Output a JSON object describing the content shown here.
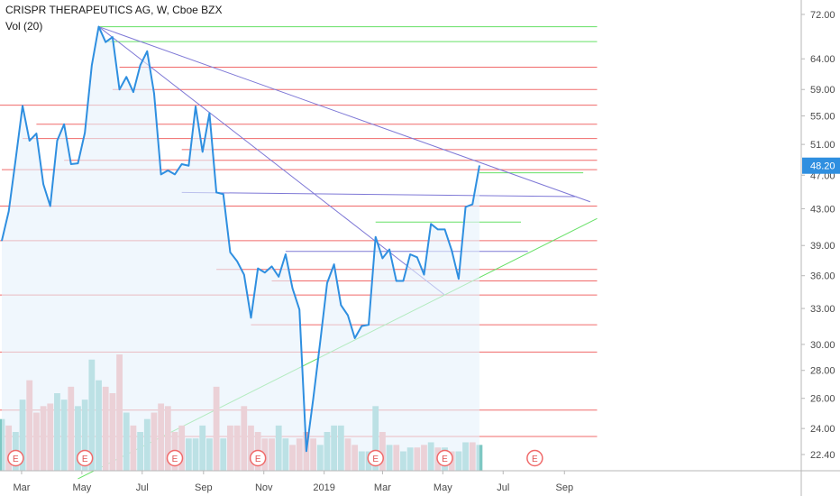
{
  "chart_data": {
    "type": "line",
    "title": "CRISPR THERAPEUTICS AG, W, Cboe BZX",
    "indicator": "Vol (20)",
    "last_price": "48.20",
    "y_scale": "log",
    "y_ticks": [
      "72.00",
      "64.00",
      "59.00",
      "55.00",
      "51.00",
      "47.00",
      "43.00",
      "39.00",
      "36.00",
      "33.00",
      "30.00",
      "28.00",
      "26.00",
      "24.00",
      "22.40"
    ],
    "x_ticks": [
      "Mar",
      "May",
      "Jul",
      "Sep",
      "Nov",
      "2019",
      "Mar",
      "May",
      "Jul",
      "Sep"
    ],
    "earnings_marker_label": "E",
    "colors": {
      "price_line": "#2f8fe0",
      "area_fill": "#e6f1fb",
      "support_resistance": "#f06a6a",
      "trend_down": "#7e78d6",
      "trend_up": "#66e066",
      "volume_up": "#7ec8c3",
      "volume_down": "#f2a1a1",
      "last_price_badge": "#2f8fe0"
    },
    "series": [
      {
        "values": [
          {
            "x": "2018-02-09",
            "y": 39.5
          },
          {
            "x": "2018-02-16",
            "y": 42.7
          },
          {
            "x": "2018-02-23",
            "y": 49.0
          },
          {
            "x": "2018-03-02",
            "y": 56.5
          },
          {
            "x": "2018-03-09",
            "y": 51.5
          },
          {
            "x": "2018-03-16",
            "y": 52.5
          },
          {
            "x": "2018-03-23",
            "y": 45.9
          },
          {
            "x": "2018-03-30",
            "y": 43.3
          },
          {
            "x": "2018-04-06",
            "y": 51.5
          },
          {
            "x": "2018-04-13",
            "y": 53.8
          },
          {
            "x": "2018-04-20",
            "y": 48.4
          },
          {
            "x": "2018-04-27",
            "y": 48.5
          },
          {
            "x": "2018-05-04",
            "y": 52.6
          },
          {
            "x": "2018-05-11",
            "y": 62.9
          },
          {
            "x": "2018-05-18",
            "y": 69.7
          },
          {
            "x": "2018-05-25",
            "y": 66.9
          },
          {
            "x": "2018-06-01",
            "y": 67.8
          },
          {
            "x": "2018-06-08",
            "y": 59.0
          },
          {
            "x": "2018-06-15",
            "y": 61.0
          },
          {
            "x": "2018-06-22",
            "y": 58.6
          },
          {
            "x": "2018-06-29",
            "y": 62.9
          },
          {
            "x": "2018-07-06",
            "y": 65.3
          },
          {
            "x": "2018-07-13",
            "y": 58.4
          },
          {
            "x": "2018-07-20",
            "y": 47.1
          },
          {
            "x": "2018-07-27",
            "y": 47.6
          },
          {
            "x": "2018-08-03",
            "y": 47.1
          },
          {
            "x": "2018-08-10",
            "y": 48.4
          },
          {
            "x": "2018-08-17",
            "y": 48.2
          },
          {
            "x": "2018-08-24",
            "y": 56.4
          },
          {
            "x": "2018-08-31",
            "y": 50.0
          },
          {
            "x": "2018-09-07",
            "y": 55.4
          },
          {
            "x": "2018-09-14",
            "y": 44.9
          },
          {
            "x": "2018-09-21",
            "y": 44.7
          },
          {
            "x": "2018-09-28",
            "y": 38.3
          },
          {
            "x": "2018-10-05",
            "y": 37.4
          },
          {
            "x": "2018-10-12",
            "y": 36.1
          },
          {
            "x": "2018-10-19",
            "y": 32.2
          },
          {
            "x": "2018-10-26",
            "y": 36.7
          },
          {
            "x": "2018-11-02",
            "y": 36.3
          },
          {
            "x": "2018-11-09",
            "y": 36.9
          },
          {
            "x": "2018-11-16",
            "y": 35.9
          },
          {
            "x": "2018-11-23",
            "y": 38.1
          },
          {
            "x": "2018-11-30",
            "y": 34.8
          },
          {
            "x": "2018-12-07",
            "y": 32.9
          },
          {
            "x": "2018-12-14",
            "y": 22.6
          },
          {
            "x": "2018-12-21",
            "y": 26.0
          },
          {
            "x": "2018-12-28",
            "y": 30.2
          },
          {
            "x": "2019-01-04",
            "y": 35.3
          },
          {
            "x": "2019-01-11",
            "y": 37.1
          },
          {
            "x": "2019-01-18",
            "y": 33.3
          },
          {
            "x": "2019-01-25",
            "y": 32.4
          },
          {
            "x": "2019-02-01",
            "y": 30.5
          },
          {
            "x": "2019-02-08",
            "y": 31.5
          },
          {
            "x": "2019-02-15",
            "y": 31.6
          },
          {
            "x": "2019-02-22",
            "y": 39.9
          },
          {
            "x": "2019-03-01",
            "y": 37.7
          },
          {
            "x": "2019-03-08",
            "y": 38.6
          },
          {
            "x": "2019-03-15",
            "y": 35.5
          },
          {
            "x": "2019-03-22",
            "y": 35.5
          },
          {
            "x": "2019-03-29",
            "y": 38.1
          },
          {
            "x": "2019-04-05",
            "y": 37.8
          },
          {
            "x": "2019-04-12",
            "y": 36.1
          },
          {
            "x": "2019-04-19",
            "y": 41.3
          },
          {
            "x": "2019-04-26",
            "y": 40.7
          },
          {
            "x": "2019-05-03",
            "y": 40.7
          },
          {
            "x": "2019-05-10",
            "y": 38.5
          },
          {
            "x": "2019-05-17",
            "y": 35.7
          },
          {
            "x": "2019-05-24",
            "y": 43.2
          },
          {
            "x": "2019-05-31",
            "y": 43.5
          },
          {
            "x": "2019-06-07",
            "y": 48.2
          }
        ]
      }
    ],
    "volume_bars": [
      {
        "x": "2018-02-09",
        "v": 4.0,
        "dir": "up"
      },
      {
        "x": "2018-02-16",
        "v": 3.5,
        "dir": "down"
      },
      {
        "x": "2018-02-23",
        "v": 3.0,
        "dir": "up"
      },
      {
        "x": "2018-03-02",
        "v": 5.5,
        "dir": "up"
      },
      {
        "x": "2018-03-09",
        "v": 7.0,
        "dir": "down"
      },
      {
        "x": "2018-03-16",
        "v": 4.5,
        "dir": "down"
      },
      {
        "x": "2018-03-23",
        "v": 5.0,
        "dir": "down"
      },
      {
        "x": "2018-03-30",
        "v": 5.2,
        "dir": "down"
      },
      {
        "x": "2018-04-06",
        "v": 6.0,
        "dir": "up"
      },
      {
        "x": "2018-04-13",
        "v": 5.5,
        "dir": "up"
      },
      {
        "x": "2018-04-20",
        "v": 6.5,
        "dir": "down"
      },
      {
        "x": "2018-04-27",
        "v": 5.0,
        "dir": "up"
      },
      {
        "x": "2018-05-04",
        "v": 5.5,
        "dir": "up"
      },
      {
        "x": "2018-05-11",
        "v": 8.6,
        "dir": "up"
      },
      {
        "x": "2018-05-18",
        "v": 7.0,
        "dir": "up"
      },
      {
        "x": "2018-05-25",
        "v": 6.5,
        "dir": "down"
      },
      {
        "x": "2018-06-01",
        "v": 6.0,
        "dir": "down"
      },
      {
        "x": "2018-06-08",
        "v": 9.0,
        "dir": "down"
      },
      {
        "x": "2018-06-15",
        "v": 4.5,
        "dir": "up"
      },
      {
        "x": "2018-06-22",
        "v": 3.5,
        "dir": "down"
      },
      {
        "x": "2018-06-29",
        "v": 3.0,
        "dir": "up"
      },
      {
        "x": "2018-07-06",
        "v": 4.0,
        "dir": "up"
      },
      {
        "x": "2018-07-13",
        "v": 4.5,
        "dir": "down"
      },
      {
        "x": "2018-07-20",
        "v": 5.2,
        "dir": "down"
      },
      {
        "x": "2018-07-27",
        "v": 5.0,
        "dir": "down"
      },
      {
        "x": "2018-08-03",
        "v": 3.0,
        "dir": "down"
      },
      {
        "x": "2018-08-10",
        "v": 3.5,
        "dir": "down"
      },
      {
        "x": "2018-08-17",
        "v": 2.5,
        "dir": "up"
      },
      {
        "x": "2018-08-24",
        "v": 2.5,
        "dir": "up"
      },
      {
        "x": "2018-08-31",
        "v": 3.5,
        "dir": "up"
      },
      {
        "x": "2018-09-07",
        "v": 2.5,
        "dir": "up"
      },
      {
        "x": "2018-09-14",
        "v": 6.5,
        "dir": "down"
      },
      {
        "x": "2018-09-21",
        "v": 2.5,
        "dir": "up"
      },
      {
        "x": "2018-09-28",
        "v": 3.5,
        "dir": "down"
      },
      {
        "x": "2018-10-05",
        "v": 3.5,
        "dir": "down"
      },
      {
        "x": "2018-10-12",
        "v": 5.0,
        "dir": "down"
      },
      {
        "x": "2018-10-19",
        "v": 3.5,
        "dir": "down"
      },
      {
        "x": "2018-10-26",
        "v": 3.0,
        "dir": "down"
      },
      {
        "x": "2018-11-02",
        "v": 2.5,
        "dir": "down"
      },
      {
        "x": "2018-11-09",
        "v": 2.5,
        "dir": "down"
      },
      {
        "x": "2018-11-16",
        "v": 3.5,
        "dir": "up"
      },
      {
        "x": "2018-11-23",
        "v": 2.5,
        "dir": "up"
      },
      {
        "x": "2018-11-30",
        "v": 2.0,
        "dir": "down"
      },
      {
        "x": "2018-12-07",
        "v": 2.5,
        "dir": "down"
      },
      {
        "x": "2018-12-14",
        "v": 3.0,
        "dir": "down"
      },
      {
        "x": "2018-12-21",
        "v": 2.5,
        "dir": "down"
      },
      {
        "x": "2018-12-28",
        "v": 2.0,
        "dir": "up"
      },
      {
        "x": "2019-01-04",
        "v": 3.0,
        "dir": "up"
      },
      {
        "x": "2019-01-11",
        "v": 3.5,
        "dir": "up"
      },
      {
        "x": "2019-01-18",
        "v": 3.5,
        "dir": "up"
      },
      {
        "x": "2019-01-25",
        "v": 2.5,
        "dir": "down"
      },
      {
        "x": "2019-02-01",
        "v": 2.0,
        "dir": "down"
      },
      {
        "x": "2019-02-08",
        "v": 1.5,
        "dir": "up"
      },
      {
        "x": "2019-02-15",
        "v": 1.5,
        "dir": "up"
      },
      {
        "x": "2019-02-22",
        "v": 5.0,
        "dir": "up"
      },
      {
        "x": "2019-03-01",
        "v": 3.0,
        "dir": "down"
      },
      {
        "x": "2019-03-08",
        "v": 2.0,
        "dir": "up"
      },
      {
        "x": "2019-03-15",
        "v": 2.0,
        "dir": "down"
      },
      {
        "x": "2019-03-22",
        "v": 1.5,
        "dir": "up"
      },
      {
        "x": "2019-03-29",
        "v": 1.8,
        "dir": "up"
      },
      {
        "x": "2019-04-05",
        "v": 1.8,
        "dir": "down"
      },
      {
        "x": "2019-04-12",
        "v": 2.0,
        "dir": "down"
      },
      {
        "x": "2019-04-19",
        "v": 2.2,
        "dir": "up"
      },
      {
        "x": "2019-04-26",
        "v": 1.8,
        "dir": "down"
      },
      {
        "x": "2019-05-03",
        "v": 1.8,
        "dir": "up"
      },
      {
        "x": "2019-05-10",
        "v": 1.5,
        "dir": "down"
      },
      {
        "x": "2019-05-17",
        "v": 1.5,
        "dir": "up"
      },
      {
        "x": "2019-05-24",
        "v": 2.2,
        "dir": "up"
      },
      {
        "x": "2019-05-31",
        "v": 2.2,
        "dir": "down"
      },
      {
        "x": "2019-06-07",
        "v": 2.0,
        "dir": "up"
      }
    ],
    "earnings_dates": [
      "2018-02-23",
      "2018-05-04",
      "2018-08-03",
      "2018-10-26",
      "2019-02-22",
      "2019-05-03",
      "2019-08-02"
    ],
    "horizontal_lines": [
      {
        "y": 69.7,
        "x1": "2018-05-18",
        "x2": "2019-10-04",
        "color": "trend_up"
      },
      {
        "y": 67.0,
        "x1": "2018-05-25",
        "x2": "2019-10-04",
        "color": "trend_up"
      },
      {
        "y": 62.6,
        "x1": "2018-06-08",
        "x2": "2019-10-04",
        "color": "support_resistance"
      },
      {
        "y": 59.0,
        "x1": "2018-06-01",
        "x2": "2019-10-04",
        "color": "support_resistance"
      },
      {
        "y": 56.6,
        "x1": "2018-02-02",
        "x2": "2019-10-04",
        "color": "support_resistance"
      },
      {
        "y": 53.8,
        "x1": "2018-03-16",
        "x2": "2019-10-04",
        "color": "support_resistance"
      },
      {
        "y": 51.8,
        "x1": "2018-03-02",
        "x2": "2019-10-04",
        "color": "support_resistance"
      },
      {
        "y": 50.3,
        "x1": "2018-08-10",
        "x2": "2019-10-04",
        "color": "support_resistance"
      },
      {
        "y": 48.9,
        "x1": "2018-04-13",
        "x2": "2019-10-04",
        "color": "support_resistance"
      },
      {
        "y": 47.7,
        "x1": "2018-02-09",
        "x2": "2019-10-04",
        "color": "support_resistance"
      },
      {
        "y": 47.3,
        "x1": "2019-06-07",
        "x2": "2019-09-20",
        "color": "trend_up"
      },
      {
        "y": 43.3,
        "x1": "2018-02-02",
        "x2": "2019-10-04",
        "color": "support_resistance"
      },
      {
        "y": 41.5,
        "x1": "2019-02-22",
        "x2": "2019-07-19",
        "color": "trend_up"
      },
      {
        "y": 39.5,
        "x1": "2018-02-02",
        "x2": "2019-10-04",
        "color": "support_resistance"
      },
      {
        "y": 38.4,
        "x1": "2018-11-23",
        "x2": "2019-07-26",
        "color": "trend_down"
      },
      {
        "y": 36.6,
        "x1": "2018-09-14",
        "x2": "2019-10-04",
        "color": "support_resistance"
      },
      {
        "y": 35.5,
        "x1": "2018-11-09",
        "x2": "2019-10-04",
        "color": "support_resistance"
      },
      {
        "y": 34.2,
        "x1": "2018-02-02",
        "x2": "2019-10-04",
        "color": "support_resistance"
      },
      {
        "y": 31.6,
        "x1": "2018-10-19",
        "x2": "2019-10-04",
        "color": "support_resistance"
      },
      {
        "y": 29.4,
        "x1": "2018-02-02",
        "x2": "2019-10-04",
        "color": "support_resistance"
      },
      {
        "y": 25.2,
        "x1": "2018-02-02",
        "x2": "2019-10-04",
        "color": "support_resistance"
      },
      {
        "y": 23.5,
        "x1": "2018-02-02",
        "x2": "2019-10-04",
        "color": "support_resistance"
      }
    ],
    "trend_lines": [
      {
        "x1": "2018-05-18",
        "y1": 69.7,
        "x2": "2019-09-27",
        "y2": 43.8,
        "color": "trend_down"
      },
      {
        "x1": "2018-05-18",
        "y1": 69.7,
        "x2": "2019-05-03",
        "y2": 34.2,
        "color": "trend_down"
      },
      {
        "x1": "2018-08-10",
        "y1": 44.9,
        "x2": "2019-09-13",
        "y2": 44.4,
        "color": "trend_down"
      },
      {
        "x1": "2018-04-27",
        "y1": 21.0,
        "x2": "2019-10-04",
        "y2": 41.9,
        "color": "trend_up"
      }
    ]
  }
}
